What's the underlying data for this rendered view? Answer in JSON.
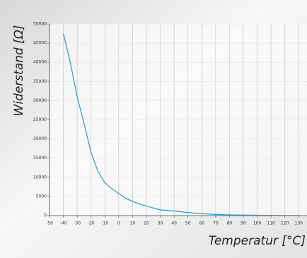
{
  "chart_data": {
    "type": "line",
    "x_label": "Temperatur [°C]",
    "y_label": "Widerstand [Ω]",
    "x": [
      -40,
      -35,
      -30,
      -25,
      -20,
      -15,
      -10,
      -5,
      0,
      5,
      10,
      15,
      20,
      25,
      30,
      40,
      50,
      60,
      70,
      80,
      90,
      100,
      110,
      120,
      130
    ],
    "series": [
      {
        "color": "#1e9ad6",
        "values": [
          47500,
          40000,
          31000,
          24000,
          16500,
          11500,
          8600,
          7000,
          5800,
          4500,
          3700,
          3000,
          2500,
          2000,
          1500,
          1200,
          800,
          500,
          300,
          200,
          150,
          100,
          80,
          50,
          40
        ]
      }
    ],
    "xlim": [
      -50,
      136
    ],
    "xticks": [
      -50,
      -40,
      -30,
      -20,
      -10,
      0,
      10,
      20,
      30,
      40,
      50,
      60,
      70,
      80,
      90,
      100,
      110,
      120,
      130
    ],
    "ylim": [
      0,
      50000
    ],
    "yticks": [
      0,
      5000,
      10000,
      15000,
      20000,
      25000,
      30000,
      35000,
      40000,
      45000,
      50000
    ],
    "grid": true
  }
}
